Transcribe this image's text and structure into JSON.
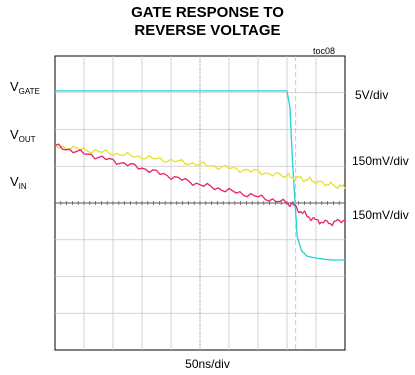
{
  "chart_data": {
    "type": "line",
    "title_line1": "GATE RESPONSE TO",
    "title_line2": "REVERSE VOLTAGE",
    "toc": "toc08",
    "xlabel": "50ns/div",
    "x_divisions": 10,
    "y_divisions": 8,
    "grid": true,
    "trace_labels": [
      {
        "main": "V",
        "sub": "GATE"
      },
      {
        "main": "V",
        "sub": "OUT"
      },
      {
        "main": "V",
        "sub": "IN"
      }
    ],
    "scales": [
      "5V/div",
      "150mV/div",
      "150mV/div"
    ],
    "x": [
      0,
      1,
      2,
      3,
      4,
      5,
      6,
      7,
      8,
      8.1,
      8.2,
      8.35,
      8.5,
      8.7,
      9,
      9.5,
      10
    ],
    "series": [
      {
        "name": "V_GATE",
        "color": "#22d0dc",
        "values": [
          3.05,
          3.05,
          3.05,
          3.05,
          3.05,
          3.05,
          3.05,
          3.05,
          3.05,
          2.6,
          1.0,
          -0.9,
          -1.3,
          -1.45,
          -1.5,
          -1.55,
          -1.55
        ]
      },
      {
        "name": "V_OUT",
        "color": "#e6e22e",
        "values": [
          1.55,
          1.45,
          1.35,
          1.25,
          1.15,
          1.05,
          0.95,
          0.85,
          0.72,
          0.71,
          0.7,
          0.68,
          0.66,
          0.64,
          0.58,
          0.5,
          0.42
        ]
      },
      {
        "name": "V_IN",
        "color": "#e8226a",
        "values": [
          1.55,
          1.35,
          1.15,
          0.95,
          0.72,
          0.5,
          0.33,
          0.17,
          0.0,
          -0.02,
          -0.05,
          -0.15,
          -0.25,
          -0.35,
          -0.48,
          -0.55,
          -0.45
        ]
      }
    ]
  }
}
